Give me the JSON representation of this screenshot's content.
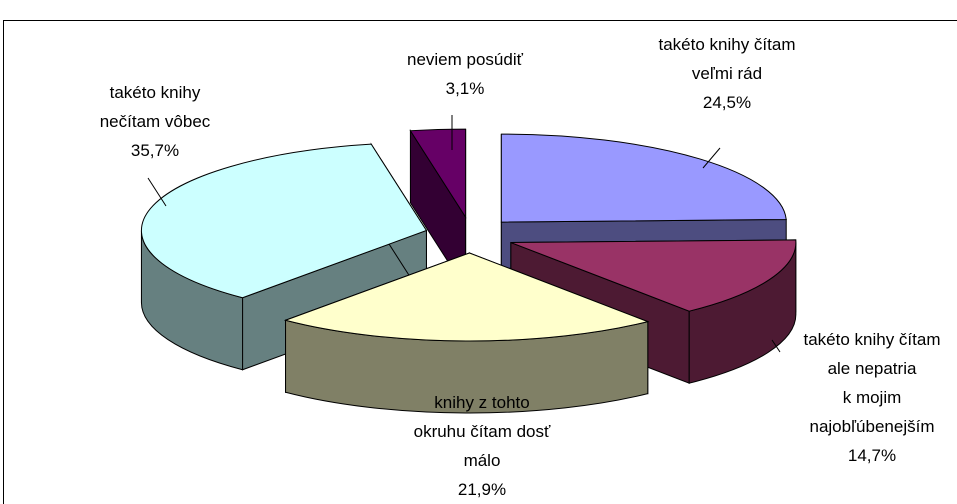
{
  "chart_data": {
    "type": "pie",
    "categories": [
      "takéto knihy čítam\nveľmi rád",
      "takéto knihy čítam\nale nepatria\nk mojim\nnajobľúbenejším",
      "knihy z tohto\nokruhu čítam dosť\nmálo",
      "takéto knihy\nnečítam vôbec",
      "neviem posúdiť"
    ],
    "values": [
      24.5,
      14.7,
      21.9,
      35.7,
      3.1
    ],
    "value_labels": [
      "24,5%",
      "14,7%",
      "21,9%",
      "35,7%",
      "3,1%"
    ],
    "colors": [
      "#9999ff",
      "#993366",
      "#ffffcc",
      "#ccffff",
      "#660066"
    ]
  }
}
